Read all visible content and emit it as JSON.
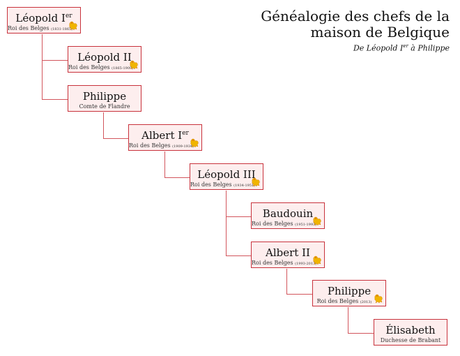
{
  "title": {
    "line1": "Généalogie des chefs de la",
    "line2": "maison de Belgique",
    "subtitle_a": "De Léopold I",
    "subtitle_sup": "er",
    "subtitle_b": " à Philippe"
  },
  "colors": {
    "border": "#c8323c",
    "fill": "#fdeeee",
    "lion": "#f0b400"
  },
  "people": [
    {
      "name": "Léopold I",
      "sup": "er",
      "title": "Roi des Belges",
      "dates": "(1831-1865)",
      "lion": true
    },
    {
      "name": "Léopold II",
      "sup": "",
      "title": "Roi des Belges",
      "dates": "(1865-1909)",
      "lion": true
    },
    {
      "name": "Philippe",
      "sup": "",
      "title": "Comte de Flandre",
      "dates": "",
      "lion": false
    },
    {
      "name": "Albert I",
      "sup": "er",
      "title": "Roi des Belges",
      "dates": "(1909-1934)",
      "lion": true
    },
    {
      "name": "Léopold III",
      "sup": "",
      "title": "Roi des Belges",
      "dates": "(1934-1951)",
      "lion": true
    },
    {
      "name": "Baudouin",
      "sup": "",
      "title": "Roi des Belges",
      "dates": "(1951-1993)",
      "lion": true
    },
    {
      "name": "Albert II",
      "sup": "",
      "title": "Roi des Belges",
      "dates": "(1993-2013)",
      "lion": true
    },
    {
      "name": "Philippe",
      "sup": "",
      "title": "Roi des Belges",
      "dates": "(2013)",
      "lion": true
    },
    {
      "name": "Élisabeth",
      "sup": "",
      "title": "Duchesse de Brabant",
      "dates": "",
      "lion": false
    }
  ]
}
